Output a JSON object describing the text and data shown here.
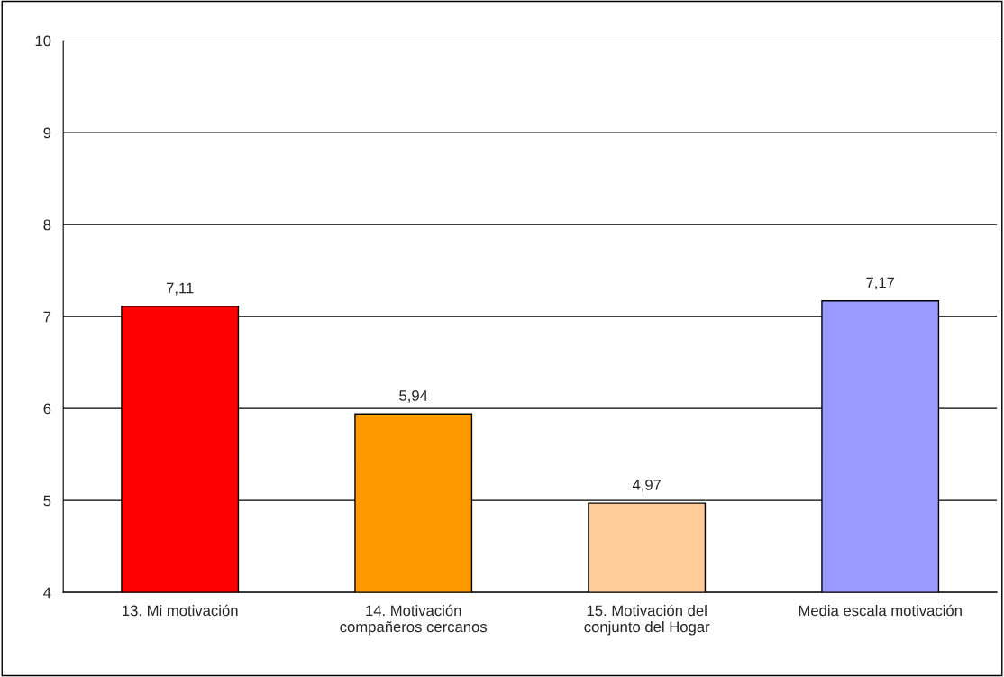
{
  "chart_data": {
    "type": "bar",
    "categories": [
      "13. Mi motivación",
      "14. Motivación\ncompañeros cercanos",
      "15. Motivación del\nconjunto del Hogar",
      "Media escala motivación"
    ],
    "values": [
      7.11,
      5.94,
      4.97,
      7.17
    ],
    "colors": [
      "#ff0000",
      "#ff9900",
      "#ffcc99",
      "#9999ff"
    ],
    "value_labels": [
      "7,11",
      "5,94",
      "4,97",
      "7,17"
    ],
    "ylim": [
      4,
      10
    ],
    "yticks": [
      4,
      5,
      6,
      7,
      8,
      9,
      10
    ],
    "grid": "y",
    "legend": false
  }
}
